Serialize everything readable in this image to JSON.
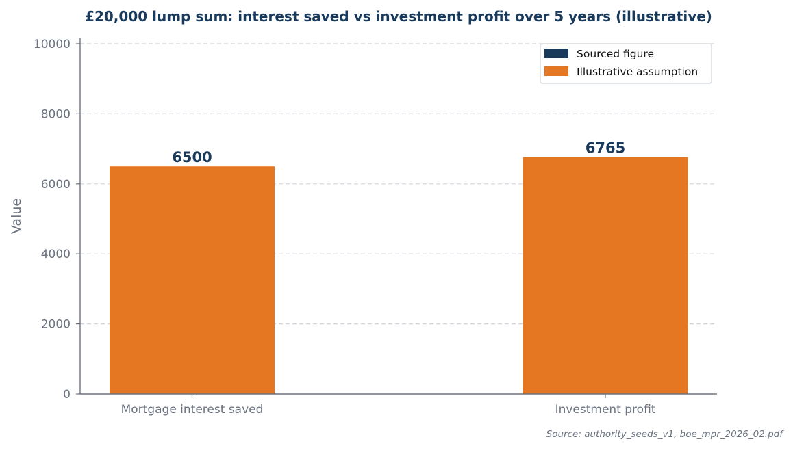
{
  "chart_data": {
    "type": "bar",
    "title": "£20,000 lump sum: interest saved vs investment profit over 5 years (illustrative)",
    "categories": [
      "Mortgage interest saved",
      "Investment profit"
    ],
    "values": [
      6500,
      6765
    ],
    "data_labels": [
      "6500",
      "6765"
    ],
    "bar_kinds": [
      "Illustrative assumption",
      "Illustrative assumption"
    ],
    "xlabel": "",
    "ylabel": "Value",
    "ylim": [
      0,
      10000
    ],
    "yticks": [
      0,
      2000,
      4000,
      6000,
      8000,
      10000
    ],
    "ytick_labels": [
      "0",
      "2000",
      "4000",
      "6000",
      "8000",
      "10000"
    ],
    "grid": true,
    "legend": {
      "placement": "top-right",
      "entries": [
        {
          "name": "Sourced figure",
          "color": "#1a3a5c"
        },
        {
          "name": "Illustrative assumption",
          "color": "#e67722"
        }
      ]
    },
    "source_note": "Source: authority_seeds_v1, boe_mpr_2026_02.pdf"
  },
  "colors": {
    "title": "#1a3a5c",
    "data_label": "#1a3a5c",
    "axis": "#6b7280",
    "grid": "#d1d5db"
  }
}
